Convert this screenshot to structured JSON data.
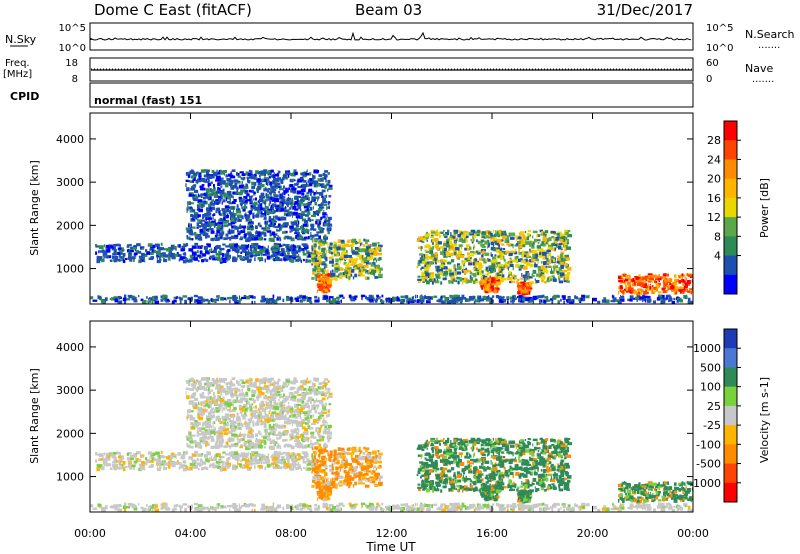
{
  "header": {
    "station": "Dome C East (fitACF)",
    "beam": "Beam 03",
    "date": "31/Dec/2017"
  },
  "panels": {
    "nsky_label": "N.Sky",
    "nsearch_label": "N.Search",
    "nsky_ticks": [
      "10^5",
      "10^0"
    ],
    "freq_label_1": "Freq.",
    "freq_label_2": "[MHz]",
    "freq_ticks": [
      "18",
      "8"
    ],
    "nave_label": "Nave",
    "nave_ticks": [
      "60",
      "0"
    ],
    "cpid_label": "CPID",
    "cpid_value": "normal (fast) 151",
    "dots_label": "......."
  },
  "chart_data": {
    "type": "heatmap",
    "xlabel": "Time UT",
    "x_ticks": [
      "00:00",
      "04:00",
      "08:00",
      "12:00",
      "16:00",
      "20:00",
      "00:00"
    ],
    "xlim_hours": [
      0,
      24
    ],
    "panels": [
      {
        "name": "power",
        "ylabel": "Slant Range [km]",
        "y_ticks": [
          1000,
          2000,
          3000,
          4000
        ],
        "ylim": [
          180,
          4600
        ],
        "colorbar": {
          "label": "Power [dB]",
          "tick_labels": [
            "28",
            "24",
            "20",
            "16",
            "12",
            "8",
            "4"
          ],
          "colors": [
            "#ff0000",
            "#ff4400",
            "#ff8c00",
            "#ffb400",
            "#e8d800",
            "#5aa84a",
            "#2e8b57",
            "#1e50b0",
            "#0000ff"
          ]
        },
        "echo_regions_hours_km": [
          {
            "t": [
              0.2,
              9.0
            ],
            "r": [
              1200,
              1600
            ],
            "level": "weak"
          },
          {
            "t": [
              3.8,
              9.5
            ],
            "r": [
              1700,
              3300
            ],
            "level": "weak"
          },
          {
            "t": [
              8.8,
              11.5
            ],
            "r": [
              800,
              1700
            ],
            "level": "moderate"
          },
          {
            "t": [
              9.0,
              9.5
            ],
            "r": [
              500,
              900
            ],
            "level": "strong"
          },
          {
            "t": [
              13.0,
              19.0
            ],
            "r": [
              700,
              1900
            ],
            "level": "moderate"
          },
          {
            "t": [
              15.5,
              16.2
            ],
            "r": [
              500,
              800
            ],
            "level": "strong"
          },
          {
            "t": [
              17.0,
              17.5
            ],
            "r": [
              450,
              700
            ],
            "level": "strong"
          },
          {
            "t": [
              21.0,
              24.0
            ],
            "r": [
              450,
              900
            ],
            "level": "strong"
          },
          {
            "t": [
              0.0,
              24.0
            ],
            "r": [
              250,
              400
            ],
            "level": "weak"
          }
        ]
      },
      {
        "name": "velocity",
        "ylabel": "Slant Range [km]",
        "y_ticks": [
          1000,
          2000,
          3000,
          4000
        ],
        "ylim": [
          180,
          4600
        ],
        "colorbar": {
          "label": "Velocity [m s-1]",
          "tick_labels": [
            "1000",
            "500",
            "100",
            "25",
            "-25",
            "-100",
            "-500",
            "-1000"
          ],
          "colors": [
            "#1e3cb4",
            "#4a78d2",
            "#2e8b57",
            "#78d23c",
            "#c8c8c8",
            "#ffb400",
            "#ff8c00",
            "#ff4400",
            "#ff0000"
          ]
        }
      }
    ]
  }
}
